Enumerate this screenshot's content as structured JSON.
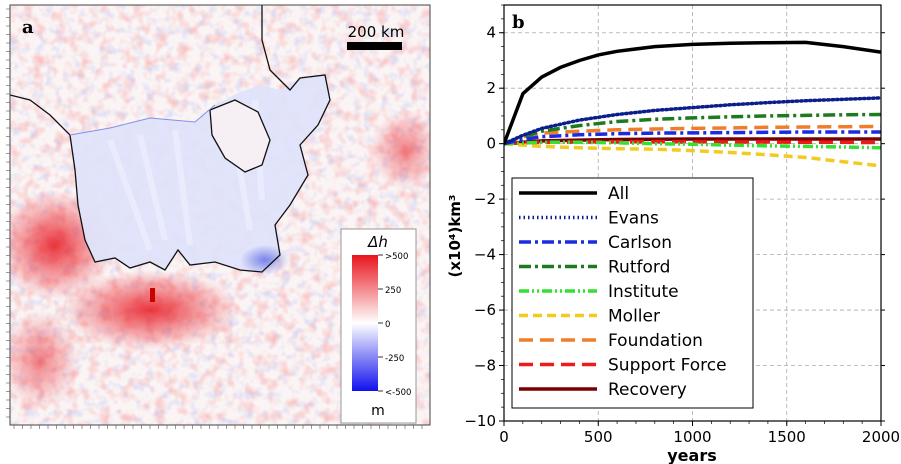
{
  "panel_a": {
    "label": "a",
    "scale_bar_label": "200 km",
    "colorbar": {
      "title": "Δh",
      "unit": "m",
      "tick_labels": [
        ">500",
        "250",
        "0",
        "-250",
        "<-500"
      ],
      "colors": {
        "max": "#e8141c",
        "mid": "#ffffff",
        "min": "#1010ee"
      }
    },
    "colors": {
      "coastline": "#111111"
    }
  },
  "chart_data": {
    "type": "line",
    "panel_label": "b",
    "xlabel": "years",
    "ylabel": "(x10⁴)km³",
    "xlim": [
      0,
      2000
    ],
    "ylim": [
      -10,
      5
    ],
    "x_ticks": [
      0,
      500,
      1000,
      1500,
      2000
    ],
    "y_ticks": [
      4,
      2,
      0,
      -2,
      -4,
      -6,
      -8,
      -10
    ],
    "x_tick_labels": [
      "0",
      "500",
      "1000",
      "1500",
      "2000"
    ],
    "y_tick_labels": [
      "4",
      "2",
      "0",
      "−2",
      "−4",
      "−6",
      "−8",
      "−10"
    ],
    "grid": true,
    "legend_position": "lower-left",
    "series": [
      {
        "name": "All",
        "color": "#000000",
        "dash": "solid",
        "x": [
          0,
          100,
          200,
          300,
          400,
          500,
          600,
          800,
          1000,
          1200,
          1400,
          1600,
          1800,
          2000
        ],
        "y": [
          0,
          1.8,
          2.4,
          2.75,
          3.0,
          3.2,
          3.33,
          3.5,
          3.58,
          3.62,
          3.64,
          3.65,
          3.5,
          3.3
        ]
      },
      {
        "name": "Evans",
        "color": "#0a1e8c",
        "dash": "dotted",
        "x": [
          0,
          100,
          200,
          400,
          600,
          800,
          1000,
          1200,
          1400,
          1600,
          1800,
          2000
        ],
        "y": [
          0,
          0.3,
          0.55,
          0.85,
          1.05,
          1.2,
          1.3,
          1.4,
          1.48,
          1.55,
          1.6,
          1.65
        ]
      },
      {
        "name": "Carlson",
        "color": "#1a2ce0",
        "dash": "dashdot",
        "x": [
          0,
          100,
          200,
          400,
          600,
          800,
          1000,
          1200,
          1400,
          1600,
          1800,
          2000
        ],
        "y": [
          0,
          0.15,
          0.25,
          0.32,
          0.36,
          0.38,
          0.39,
          0.4,
          0.41,
          0.42,
          0.42,
          0.42
        ]
      },
      {
        "name": "Rutford",
        "color": "#1e7a1e",
        "dash": "dashdot",
        "x": [
          0,
          100,
          200,
          400,
          600,
          800,
          1000,
          1200,
          1400,
          1600,
          1800,
          2000
        ],
        "y": [
          0,
          0.25,
          0.45,
          0.65,
          0.8,
          0.88,
          0.93,
          0.97,
          1.0,
          1.02,
          1.04,
          1.05
        ]
      },
      {
        "name": "Institute",
        "color": "#33e033",
        "dash": "dashdotdot",
        "x": [
          0,
          200,
          400,
          600,
          800,
          1000,
          1200,
          1400,
          1600,
          1800,
          2000
        ],
        "y": [
          0,
          0.05,
          0.05,
          0.03,
          0.0,
          -0.02,
          -0.05,
          -0.08,
          -0.1,
          -0.12,
          -0.15
        ]
      },
      {
        "name": "Moller",
        "color": "#f2cb22",
        "dash": "dashed",
        "x": [
          0,
          200,
          400,
          600,
          800,
          1000,
          1200,
          1400,
          1600,
          1800,
          2000
        ],
        "y": [
          0,
          -0.1,
          -0.15,
          -0.18,
          -0.2,
          -0.25,
          -0.32,
          -0.4,
          -0.5,
          -0.65,
          -0.8
        ]
      },
      {
        "name": "Foundation",
        "color": "#f07d28",
        "dash": "longdash",
        "x": [
          0,
          100,
          200,
          400,
          600,
          800,
          1000,
          1200,
          1400,
          1600,
          1800,
          2000
        ],
        "y": [
          0,
          0.25,
          0.38,
          0.45,
          0.5,
          0.53,
          0.55,
          0.57,
          0.59,
          0.6,
          0.61,
          0.62
        ]
      },
      {
        "name": "Support Force",
        "color": "#ee1a1a",
        "dash": "longdash",
        "x": [
          0,
          200,
          400,
          600,
          800,
          1000,
          1200,
          1400,
          1600,
          1800,
          2000
        ],
        "y": [
          0,
          0.05,
          0.06,
          0.07,
          0.07,
          0.07,
          0.06,
          0.06,
          0.05,
          0.05,
          0.04
        ]
      },
      {
        "name": "Recovery",
        "color": "#7a0000",
        "dash": "solid",
        "x": [
          0,
          200,
          400,
          600,
          800,
          1000,
          1200,
          1400,
          1600,
          1800,
          2000
        ],
        "y": [
          0,
          0.1,
          0.13,
          0.15,
          0.16,
          0.17,
          0.17,
          0.17,
          0.17,
          0.17,
          0.17
        ]
      }
    ]
  }
}
